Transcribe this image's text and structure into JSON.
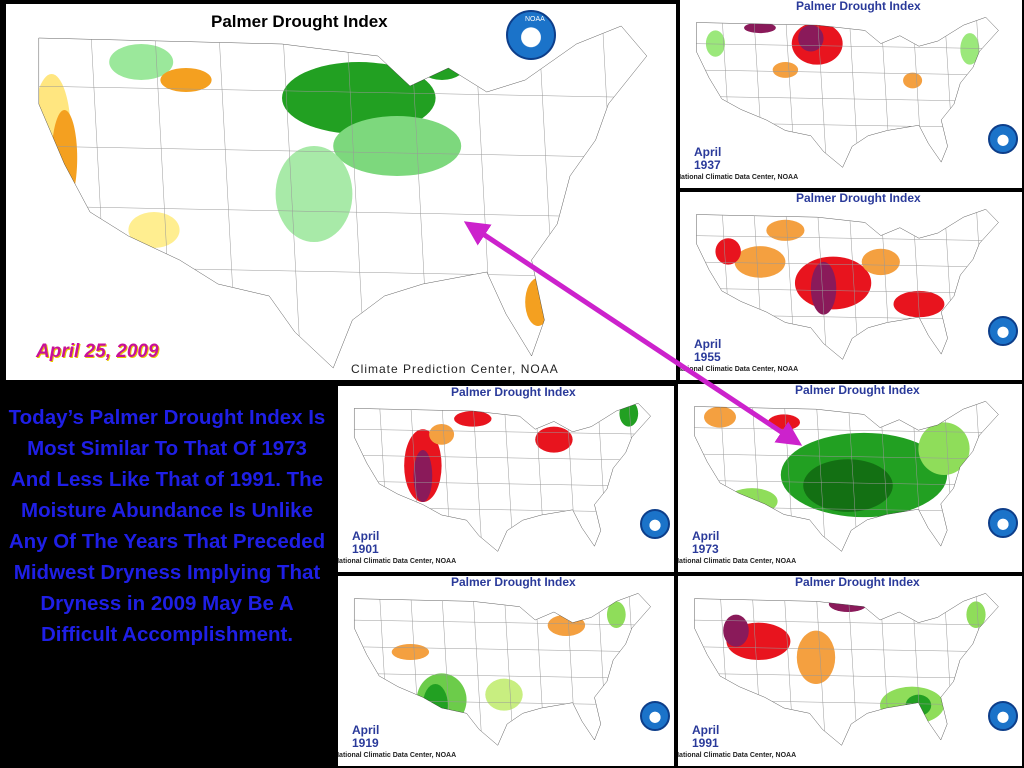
{
  "main": {
    "title": "Palmer Drought Index",
    "date": "April 25, 2009",
    "credit": "Climate Prediction Center, NOAA",
    "logo": "NOAA"
  },
  "panels": [
    {
      "title": "Palmer Drought Index",
      "month": "April",
      "year": "1937",
      "credit": "National Climatic Data Center, NOAA"
    },
    {
      "title": "Palmer Drought Index",
      "month": "April",
      "year": "1955",
      "credit": "National Climatic Data Center, NOAA"
    },
    {
      "title": "Palmer Drought Index",
      "month": "April",
      "year": "1901",
      "credit": "National Climatic Data Center, NOAA"
    },
    {
      "title": "Palmer Drought Index",
      "month": "April",
      "year": "1973",
      "credit": "National Climatic Data Center, NOAA"
    },
    {
      "title": "Palmer Drought Index",
      "month": "April",
      "year": "1919",
      "credit": "National Climatic Data Center, NOAA"
    },
    {
      "title": "Palmer Drought Index",
      "month": "April",
      "year": "1991",
      "credit": "National Climatic Data Center, NOAA"
    }
  ],
  "text": "Today’s Palmer Drought Index Is Most Similar To That Of 1973 And Less Like That of 1991. The Moisture Abundance Is Unlike Any Of The Years That Preceded Midwest Dryness Implying That Dryness in 2009 May Be A Difficult Accomplishment."
}
